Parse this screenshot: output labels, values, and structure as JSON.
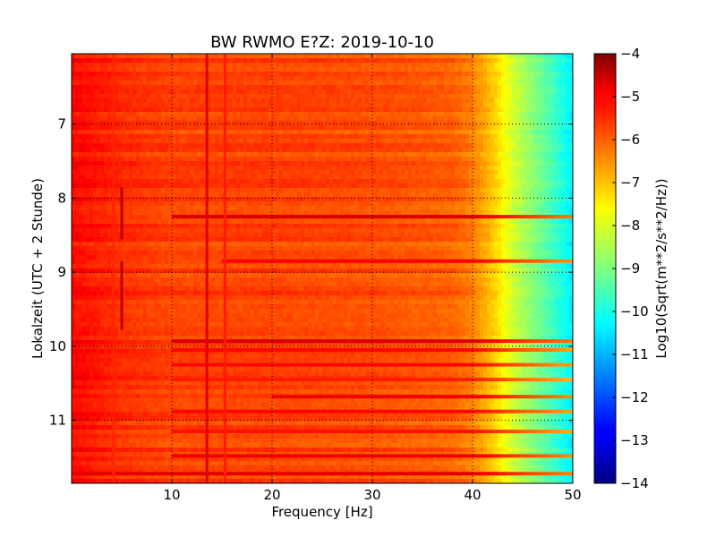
{
  "chart_data": {
    "type": "heatmap",
    "title": "BW RWMO E?Z: 2019-10-10",
    "xlabel": "Frequency [Hz]",
    "ylabel": "Lokalzeit (UTC + 2 Stunde)",
    "xlim": [
      0,
      50
    ],
    "ylim": [
      11.85,
      6.05
    ],
    "y_inverted": true,
    "x_ticks": [
      10,
      20,
      30,
      40,
      50
    ],
    "x_tick_labels": [
      "10",
      "20",
      "30",
      "40",
      "50"
    ],
    "y_ticks": [
      7,
      8,
      9,
      10,
      11
    ],
    "y_tick_labels": [
      "7",
      "8",
      "9",
      "10",
      "11"
    ],
    "grid": true,
    "colormap": "jet",
    "colorbar": {
      "label": "Log10(Sqrt(m**2/s**2/Hz))",
      "range": [
        -14,
        -4
      ],
      "ticks": [
        -4,
        -5,
        -6,
        -7,
        -8,
        -9,
        -10,
        -11,
        -12,
        -13,
        -14
      ],
      "tick_labels": [
        "−4",
        "−5",
        "−6",
        "−7",
        "−8",
        "−9",
        "−10",
        "−11",
        "−12",
        "−13",
        "−14"
      ]
    },
    "background_profile": {
      "freq": [
        0,
        5,
        10,
        20,
        30,
        38,
        40,
        42,
        44,
        46,
        48,
        50
      ],
      "value": [
        -5.3,
        -5.7,
        -5.9,
        -5.9,
        -6.0,
        -6.2,
        -6.5,
        -7.2,
        -8.2,
        -8.9,
        -9.6,
        -10.4
      ]
    },
    "bands": [
      {
        "time": 8.25,
        "value": -4.9,
        "f_from": 10,
        "f_to": 50
      },
      {
        "time": 8.85,
        "value": -5.2,
        "f_from": 15,
        "f_to": 50
      },
      {
        "time": 9.93,
        "value": -4.9,
        "f_from": 10,
        "f_to": 50
      },
      {
        "time": 10.05,
        "value": -5.3,
        "f_from": 10,
        "f_to": 50
      },
      {
        "time": 10.25,
        "value": -5.3,
        "f_from": 10,
        "f_to": 50
      },
      {
        "time": 10.45,
        "value": -5.5,
        "f_from": 10,
        "f_to": 50
      },
      {
        "time": 10.68,
        "value": -5.1,
        "f_from": 20,
        "f_to": 50
      },
      {
        "time": 10.88,
        "value": -5.3,
        "f_from": 10,
        "f_to": 50
      },
      {
        "time": 11.15,
        "value": -5.4,
        "f_from": 10,
        "f_to": 50
      },
      {
        "time": 11.48,
        "value": -5.1,
        "f_from": 10,
        "f_to": 50
      },
      {
        "time": 11.72,
        "value": -5.0,
        "f_from": 0,
        "f_to": 50
      }
    ],
    "lines": [
      {
        "freq": 5.0,
        "value": -4.6,
        "t_from": 7.85,
        "t_to": 8.55
      },
      {
        "freq": 5.0,
        "value": -4.6,
        "t_from": 8.85,
        "t_to": 9.78
      },
      {
        "freq": 13.5,
        "value": -5.0,
        "t_from": 6.05,
        "t_to": 11.85
      },
      {
        "freq": 15.3,
        "value": -5.5,
        "t_from": 6.05,
        "t_to": 11.85
      },
      {
        "freq": 4.2,
        "value": -5.6,
        "t_from": 6.05,
        "t_to": 11.85
      }
    ]
  }
}
